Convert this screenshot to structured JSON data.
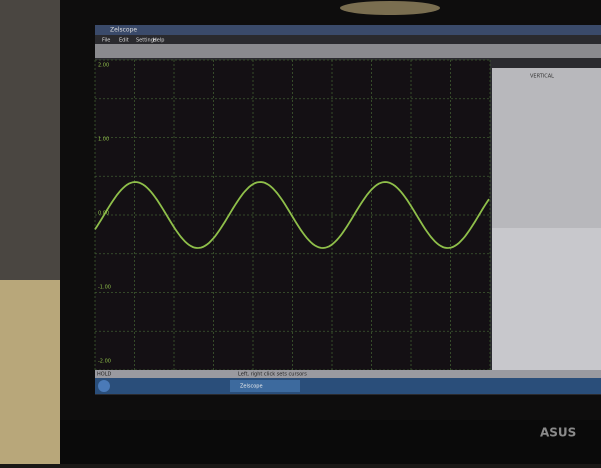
{
  "window": {
    "title": "Zelscope",
    "menu": [
      "File",
      "Edit",
      "Settings",
      "Help"
    ]
  },
  "scope": {
    "y_labels": [
      "2.00",
      "1.00",
      "0.00",
      "-1.00",
      "-2.00"
    ]
  },
  "panel": {
    "vertical": "VERTICAL"
  },
  "status": {
    "mode": "HOLD",
    "hint": "Left, right click sets cursors"
  },
  "taskbar": {
    "item": "Zelscope"
  },
  "brand": "ASUS"
}
